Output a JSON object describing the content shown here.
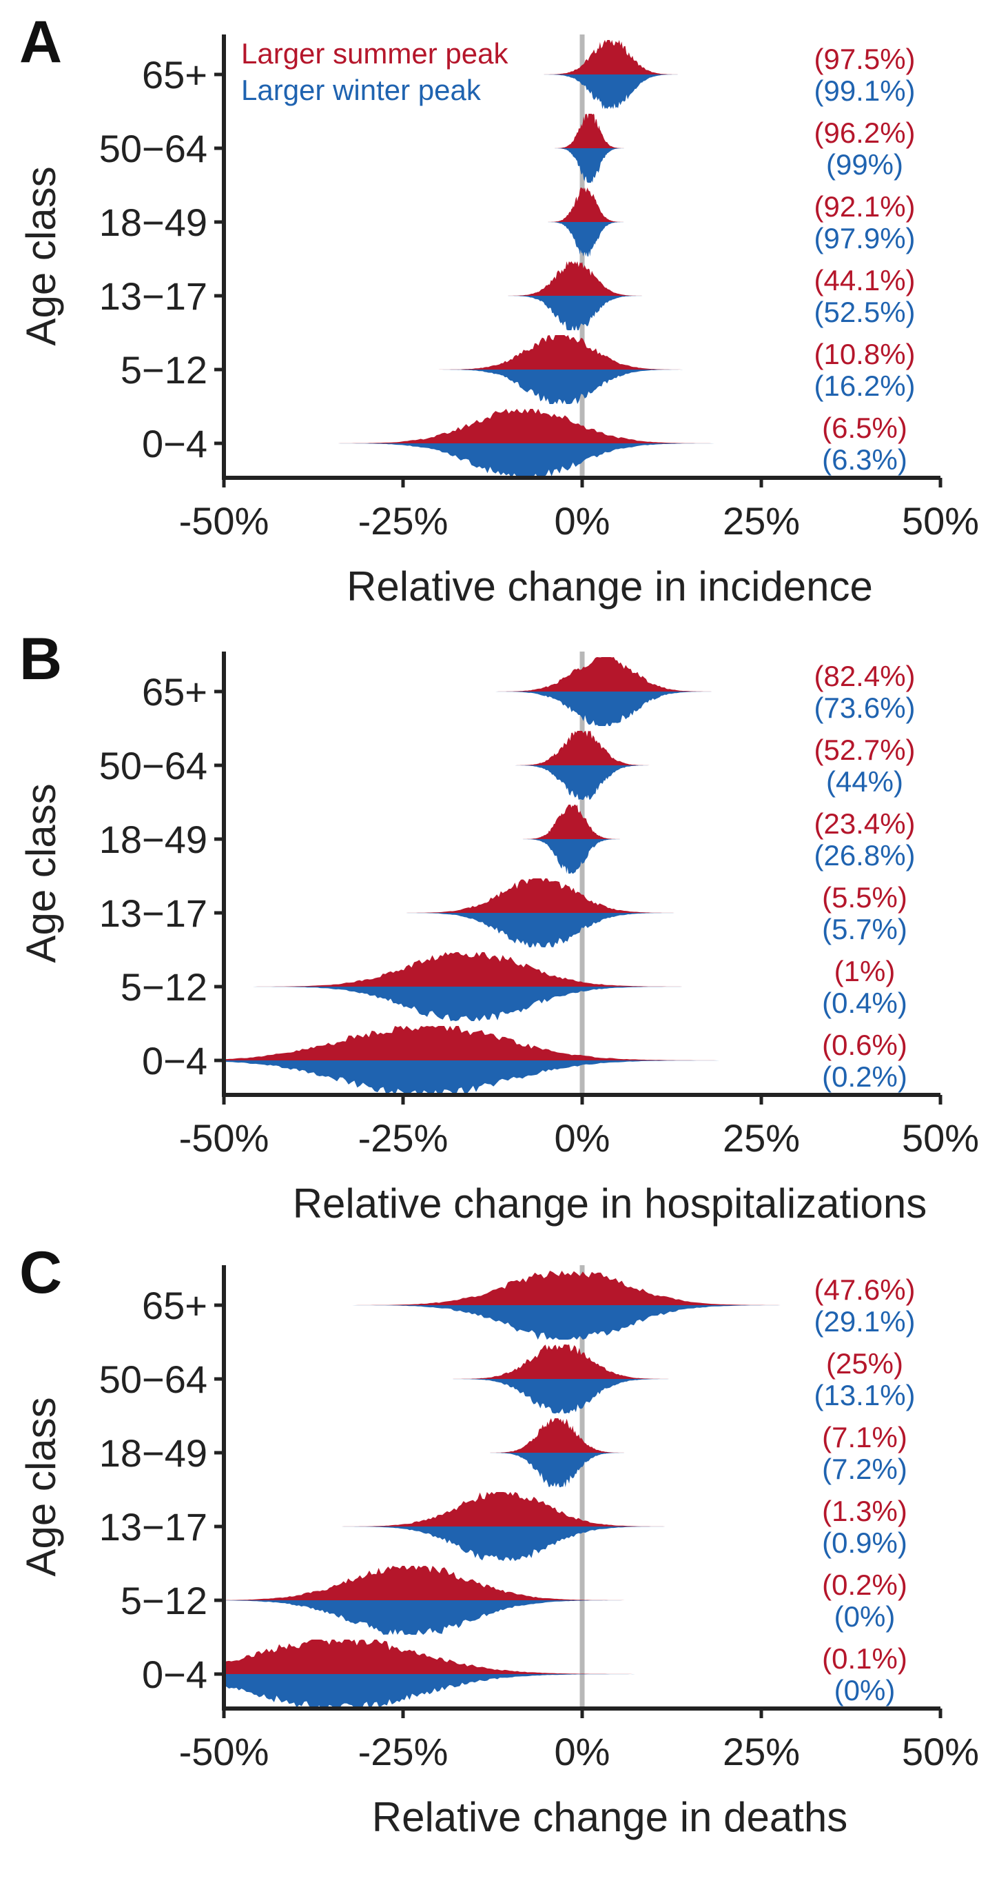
{
  "colors": {
    "summer": "#b5162b",
    "winter": "#1f63b0",
    "zero_line": "#b8b8b8",
    "axis": "#222222"
  },
  "legend": {
    "summer_label": "Larger summer peak",
    "winter_label": "Larger winter peak"
  },
  "chart_data": [
    {
      "type": "area",
      "panel": "A",
      "ylabel": "Age class",
      "xlabel": "Relative change in incidence",
      "xlim": [
        -50,
        50
      ],
      "x_ticks": [
        "-50%",
        "-25%",
        "0%",
        "25%",
        "50%"
      ],
      "categories": [
        "65+",
        "50−64",
        "18−49",
        "13−17",
        "5−12",
        "0−4"
      ],
      "series": [
        {
          "name": "Larger summer peak",
          "peaks": [
            4,
            1,
            0.5,
            -1,
            -3,
            -8
          ],
          "spreads": [
            2.5,
            1.3,
            1.4,
            2.5,
            4.5,
            7
          ],
          "labels": [
            "(97.5%)",
            "(96.2%)",
            "(92.1%)",
            "(44.1%)",
            "(10.8%)",
            "(6.5%)"
          ]
        },
        {
          "name": "Larger winter peak",
          "peaks": [
            4,
            1,
            0.5,
            -1,
            -3,
            -8
          ],
          "spreads": [
            2.5,
            1.3,
            1.4,
            2.5,
            4.5,
            7
          ],
          "labels": [
            "(99.1%)",
            "(99%)",
            "(97.9%)",
            "(52.5%)",
            "(16.2%)",
            "(6.3%)"
          ]
        }
      ]
    },
    {
      "type": "area",
      "panel": "B",
      "ylabel": "Age class",
      "xlabel": "Relative change in hospitalizations",
      "xlim": [
        -50,
        50
      ],
      "x_ticks": [
        "-50%",
        "-25%",
        "0%",
        "25%",
        "50%"
      ],
      "categories": [
        "65+",
        "50−64",
        "18−49",
        "13−17",
        "5−12",
        "0−4"
      ],
      "series": [
        {
          "name": "Larger summer peak",
          "peaks": [
            3,
            0,
            -1.5,
            -6,
            -16,
            -22
          ],
          "spreads": [
            4,
            2.5,
            1.8,
            5,
            8,
            11
          ],
          "labels": [
            "(82.4%)",
            "(52.7%)",
            "(23.4%)",
            "(5.5%)",
            "(1%)",
            "(0.6%)"
          ]
        },
        {
          "name": "Larger winter peak",
          "peaks": [
            3,
            0,
            -1.5,
            -6,
            -16,
            -22
          ],
          "spreads": [
            4,
            2.5,
            1.8,
            5,
            8,
            11
          ],
          "labels": [
            "(73.6%)",
            "(44%)",
            "(26.8%)",
            "(5.7%)",
            "(0.4%)",
            "(0.2%)"
          ]
        }
      ]
    },
    {
      "type": "area",
      "panel": "C",
      "ylabel": "Age class",
      "xlabel": "Relative change in deaths",
      "xlim": [
        -50,
        50
      ],
      "x_ticks": [
        "-50%",
        "-25%",
        "0%",
        "25%",
        "50%"
      ],
      "categories": [
        "65+",
        "50−64",
        "18−49",
        "13−17",
        "5−12",
        "0−4"
      ],
      "series": [
        {
          "name": "Larger summer peak",
          "peaks": [
            -2,
            -3,
            -3.5,
            -11,
            -24,
            -34
          ],
          "spreads": [
            8,
            4,
            2.5,
            6,
            8,
            11
          ],
          "labels": [
            "(47.6%)",
            "(25%)",
            "(7.1%)",
            "(1.3%)",
            "(0.2%)",
            "(0.1%)"
          ]
        },
        {
          "name": "Larger winter peak",
          "peaks": [
            -2,
            -3,
            -3.5,
            -11,
            -24,
            -34
          ],
          "spreads": [
            8,
            4,
            2.5,
            6,
            8,
            11
          ],
          "labels": [
            "(29.1%)",
            "(13.1%)",
            "(7.2%)",
            "(0.9%)",
            "(0%)",
            "(0%)"
          ]
        }
      ]
    }
  ]
}
